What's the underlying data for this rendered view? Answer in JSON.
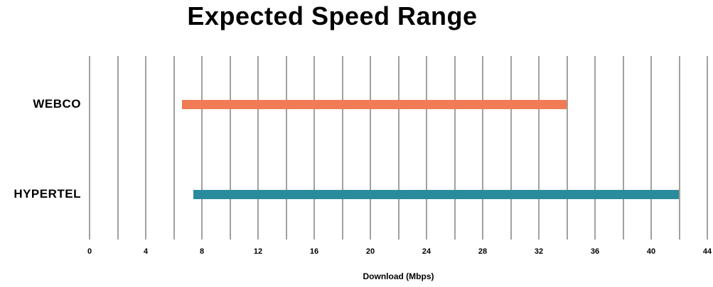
{
  "chart_data": {
    "type": "bar",
    "orientation": "horizontal-range",
    "title": "Expected Speed Range",
    "xlabel": "Download (Mbps)",
    "categories": [
      "WEBCO",
      "HYPERTEL"
    ],
    "series": [
      {
        "name": "WEBCO",
        "range_min": 6.6,
        "range_max": 34,
        "color": "#F07B54"
      },
      {
        "name": "HYPERTEL",
        "range_min": 7.4,
        "range_max": 42,
        "color": "#2A8B9D"
      }
    ],
    "xlim": [
      0,
      44
    ],
    "x_tick_values": [
      0,
      4,
      8,
      12,
      16,
      20,
      24,
      28,
      32,
      36,
      40,
      44
    ],
    "x_tick_labels": [
      "0",
      "4",
      "8",
      "12",
      "16",
      "20",
      "24",
      "28",
      "32",
      "36",
      "40",
      "44"
    ],
    "gridline_step": 2,
    "grid": "vertical",
    "legend": "none",
    "colors": {
      "gridline": "#A5A09B",
      "text": "#000000",
      "background": "#FFFFFF"
    }
  }
}
